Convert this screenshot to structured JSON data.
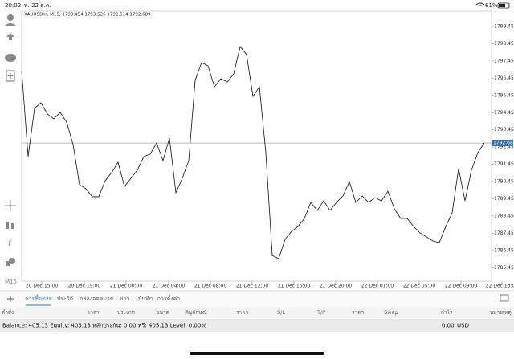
{
  "status_bar": {
    "time": "20:02",
    "date": "พ. 22 ธ.ค.",
    "battery": "61%"
  },
  "timeframe": "M15",
  "chart_data": {
    "type": "line",
    "title": "XAUUSDm, M15, 1793.454 1793.526 1792.514 1792.689",
    "color": "#111111",
    "values": [
      1796.89,
      1791.9,
      1794.7,
      1795.02,
      1794.37,
      1794.09,
      1794.46,
      1793.9,
      1792.6,
      1790.27,
      1790.03,
      1789.57,
      1789.57,
      1790.5,
      1790.97,
      1791.57,
      1790.17,
      1790.64,
      1791.11,
      1791.9,
      1792.04,
      1792.69,
      1791.66,
      1792.97,
      1789.8,
      1790.64,
      1791.66,
      1796.33,
      1797.35,
      1797.17,
      1795.95,
      1796.42,
      1796.23,
      1796.7,
      1798.28,
      1797.82,
      1795.39,
      1795.95,
      1792.13,
      1786.16,
      1785.98,
      1787.1,
      1787.56,
      1787.84,
      1788.31,
      1789.24,
      1788.77,
      1789.33,
      1788.77,
      1789.24,
      1789.61,
      1790.45,
      1789.24,
      1789.61,
      1789.24,
      1789.52,
      1789.33,
      1789.89,
      1788.87,
      1788.31,
      1788.31,
      1787.84,
      1787.47,
      1787.24,
      1787.0,
      1786.91,
      1787.84,
      1788.63,
      1791.2,
      1789.33,
      1791.11,
      1792.13,
      1792.69
    ],
    "xlim": [
      0,
      73.125
    ],
    "xticks": [
      {
        "value": 3.125,
        "label": "20 Dec 15:00"
      },
      {
        "value": 9.75,
        "label": "20 Dec 19:00"
      },
      {
        "value": 16.25,
        "label": "21 Dec 00:00"
      },
      {
        "value": 22.875,
        "label": "21 Dec 04:00"
      },
      {
        "value": 29.375,
        "label": "21 Dec 08:00"
      },
      {
        "value": 35.875,
        "label": "21 Dec 12:00"
      },
      {
        "value": 42.375,
        "label": "21 Dec 16:00"
      },
      {
        "value": 48.875,
        "label": "21 Dec 20:00"
      },
      {
        "value": 55.375,
        "label": "22 Dec 01:00"
      },
      {
        "value": 61.875,
        "label": "22 Dec 05:00"
      },
      {
        "value": 68.375,
        "label": "22 Dec 09:00"
      },
      {
        "value": 74.75,
        "label": "22 Dec 13:00"
      }
    ],
    "ylim": [
      1784.672,
      1800.336
    ],
    "yticks": [
      {
        "value": 1799.45,
        "label": "1799.450"
      },
      {
        "value": 1798.45,
        "label": "1798.450"
      },
      {
        "value": 1797.45,
        "label": "1797.450"
      },
      {
        "value": 1796.45,
        "label": "1796.450"
      },
      {
        "value": 1795.45,
        "label": "1795.450"
      },
      {
        "value": 1794.45,
        "label": "1794.450"
      },
      {
        "value": 1793.45,
        "label": "1793.450"
      },
      {
        "value": 1792.45,
        "label": "1792.450"
      },
      {
        "value": 1791.45,
        "label": "1791.450"
      },
      {
        "value": 1790.45,
        "label": "1790.450"
      },
      {
        "value": 1789.45,
        "label": "1789.450"
      },
      {
        "value": 1788.45,
        "label": "1788.450"
      },
      {
        "value": 1787.45,
        "label": "1787.450"
      },
      {
        "value": 1786.45,
        "label": "1786.450"
      },
      {
        "value": 1785.45,
        "label": "1785.450"
      }
    ],
    "price_line": 1792.689,
    "price_line_color": "#3a6ea5"
  },
  "tabs": [
    "การซื้อขาย",
    "ประวัติ",
    "กล่องจดหมาย",
    "ข่าว",
    "บันทึก",
    "การตั้งค่า"
  ],
  "columns": [
    "คำสั่ง",
    "เวลา",
    "ประเภท",
    "ขนาด",
    "สัญลักษณ์",
    "ราคา",
    "S/L",
    "T/P",
    "ราคา",
    "Swap",
    "กำไร",
    "หมายเหตุ"
  ],
  "balance": {
    "text": "Balance: 405.13 Equity: 405.13 หลักประกัน: 0.00 ฟรี: 405.13 Level: 0.00%",
    "profit": "0.00",
    "currency": "USD"
  }
}
